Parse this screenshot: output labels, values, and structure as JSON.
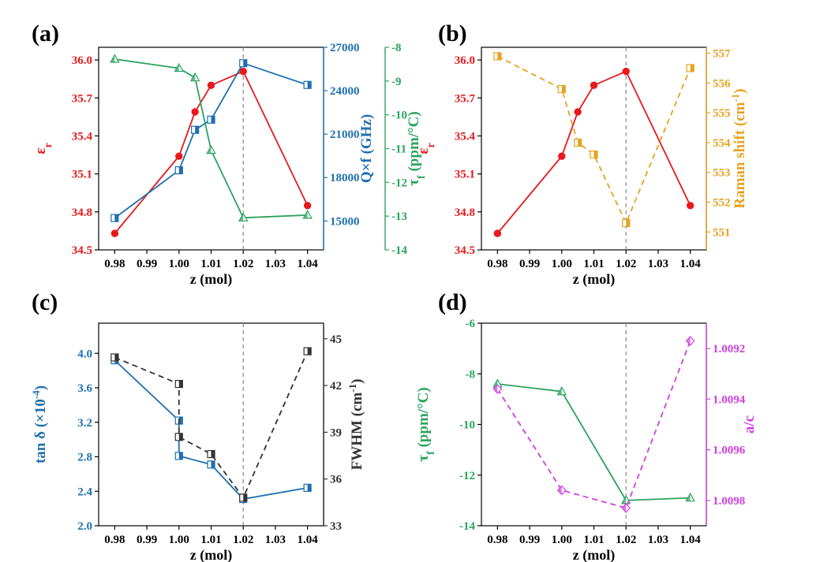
{
  "figure": {
    "x_label": "z (mol)",
    "x_ticks": [
      "0.98",
      "0.99",
      "1.00",
      "1.01",
      "1.02",
      "1.03",
      "1.04"
    ],
    "colors": {
      "red": "#e8191c",
      "blue": "#1f6fb0",
      "green": "#2aa35e",
      "orange": "#e6a21e",
      "black": "#333333",
      "magenta": "#d040e0",
      "grey_dash": "#888888"
    }
  },
  "chart_data": [
    {
      "panel": "(a)",
      "type": "line",
      "xlabel": "z (mol)",
      "xlim": [
        0.975,
        1.045
      ],
      "axes": [
        {
          "label_main": "ε",
          "label_sub": "r",
          "label_rest": "",
          "side": "left",
          "color": "red",
          "lim": [
            34.5,
            36.1
          ],
          "ticks": [
            "34.5",
            "34.8",
            "35.1",
            "35.4",
            "35.7",
            "36.0"
          ]
        },
        {
          "label_main": "Q×f (GHz)",
          "label_sub": "",
          "label_rest": "",
          "side": "right",
          "color": "blue",
          "lim": [
            13000,
            27000
          ],
          "ticks": [
            "15000",
            "18000",
            "21000",
            "24000",
            "27000"
          ]
        },
        {
          "label_main": "τ",
          "label_sub": "f",
          "label_rest": " (ppm/°C)",
          "side": "right2",
          "color": "green",
          "lim": [
            -14,
            -8
          ],
          "ticks": [
            "-14",
            "-13",
            "-12",
            "-11",
            "-10",
            "-9",
            "-8"
          ]
        }
      ],
      "vline": 1.02,
      "series": [
        {
          "axis": 0,
          "color": "red",
          "marker": "circle",
          "dashed": false,
          "x": [
            0.98,
            1.0,
            1.005,
            1.01,
            1.02,
            1.04
          ],
          "y": [
            34.63,
            35.24,
            35.59,
            35.8,
            35.91,
            34.85
          ]
        },
        {
          "axis": 1,
          "color": "blue",
          "marker": "square",
          "dashed": false,
          "x": [
            0.98,
            1.0,
            1.005,
            1.01,
            1.02,
            1.04
          ],
          "y": [
            15200,
            18500,
            21300,
            22000,
            25900,
            24400
          ]
        },
        {
          "axis": 2,
          "color": "green",
          "marker": "triangle",
          "dashed": false,
          "x": [
            0.98,
            1.0,
            1.005,
            1.01,
            1.02,
            1.04
          ],
          "y": [
            -8.35,
            -8.62,
            -8.9,
            -11.05,
            -13.05,
            -12.97
          ]
        }
      ]
    },
    {
      "panel": "(b)",
      "type": "line",
      "xlabel": "z (mol)",
      "xlim": [
        0.975,
        1.045
      ],
      "axes": [
        {
          "label_main": "ε",
          "label_sub": "r",
          "label_rest": "",
          "side": "left",
          "color": "red",
          "lim": [
            34.5,
            36.1
          ],
          "ticks": [
            "34.5",
            "34.8",
            "35.1",
            "35.4",
            "35.7",
            "36.0"
          ]
        },
        {
          "label_main": "Raman shift (cm",
          "label_sub": "",
          "label_rest": "",
          "label_sup": "-1",
          "label_end": ")",
          "side": "right",
          "color": "orange",
          "lim": [
            550.4,
            557.2
          ],
          "ticks": [
            "551",
            "552",
            "553",
            "554",
            "555",
            "556",
            "557"
          ]
        }
      ],
      "vline": 1.02,
      "series": [
        {
          "axis": 0,
          "color": "red",
          "marker": "circle",
          "dashed": false,
          "x": [
            0.98,
            1.0,
            1.005,
            1.01,
            1.02,
            1.04
          ],
          "y": [
            34.63,
            35.24,
            35.59,
            35.8,
            35.91,
            34.85
          ]
        },
        {
          "axis": 1,
          "color": "orange",
          "marker": "square",
          "dashed": true,
          "x": [
            0.98,
            1.0,
            1.005,
            1.01,
            1.02,
            1.04
          ],
          "y": [
            556.9,
            555.8,
            554.0,
            553.6,
            551.3,
            556.5
          ]
        }
      ]
    },
    {
      "panel": "(c)",
      "type": "line",
      "xlabel": "z (mol)",
      "xlim": [
        0.975,
        1.045
      ],
      "axes": [
        {
          "label_main": "tan δ (×10",
          "label_sub": "",
          "label_rest": "",
          "label_sup": "-4",
          "label_end": ")",
          "side": "left",
          "color": "blue",
          "lim": [
            2.0,
            4.35
          ],
          "ticks": [
            "2.0",
            "2.4",
            "2.8",
            "3.2",
            "3.6",
            "4.0"
          ]
        },
        {
          "label_main": "FWHM (cm",
          "label_sub": "",
          "label_rest": "",
          "label_sup": "-1",
          "label_end": ")",
          "side": "right",
          "color": "black",
          "lim": [
            33,
            46
          ],
          "ticks": [
            "33",
            "36",
            "39",
            "42",
            "45"
          ]
        }
      ],
      "vline": 1.02,
      "series": [
        {
          "axis": 0,
          "color": "blue",
          "marker": "square",
          "dashed": false,
          "x": [
            0.98,
            1.0,
            1.0,
            1.01,
            1.02,
            1.04
          ],
          "y": [
            3.92,
            3.22,
            2.81,
            2.71,
            2.31,
            2.44
          ]
        },
        {
          "axis": 1,
          "color": "black",
          "marker": "square",
          "dashed": true,
          "x": [
            0.98,
            1.0,
            1.0,
            1.01,
            1.02,
            1.04
          ],
          "y": [
            43.8,
            42.1,
            38.7,
            37.6,
            34.8,
            44.2
          ]
        }
      ]
    },
    {
      "panel": "(d)",
      "type": "line",
      "xlabel": "z (mol)",
      "xlim": [
        0.975,
        1.045
      ],
      "axes": [
        {
          "label_main": "τ",
          "label_sub": "f",
          "label_rest": " (ppm/°C)",
          "side": "left",
          "color": "green",
          "lim": [
            -14,
            -6
          ],
          "ticks": [
            "-14",
            "-12",
            "-10",
            "-8",
            "-6"
          ]
        },
        {
          "label_main": "a/c",
          "label_sub": "",
          "label_rest": "",
          "side": "right",
          "color": "magenta",
          "lim": [
            1.0099,
            1.0091
          ],
          "ticks": [
            "1.0092",
            "1.0094",
            "1.0096",
            "1.0098"
          ],
          "tick_values": [
            1.0092,
            1.0094,
            1.0096,
            1.0098
          ]
        }
      ],
      "vline": 1.02,
      "series": [
        {
          "axis": 0,
          "color": "green",
          "marker": "triangle",
          "dashed": false,
          "x": [
            0.98,
            1.0,
            1.02,
            1.04
          ],
          "y": [
            -8.4,
            -8.7,
            -13.0,
            -12.9
          ]
        },
        {
          "axis": 1,
          "color": "magenta",
          "marker": "diamond",
          "dashed": true,
          "x": [
            0.98,
            1.0,
            1.02,
            1.04
          ],
          "y": [
            1.00936,
            1.00976,
            1.00983,
            1.00917
          ]
        }
      ]
    }
  ]
}
